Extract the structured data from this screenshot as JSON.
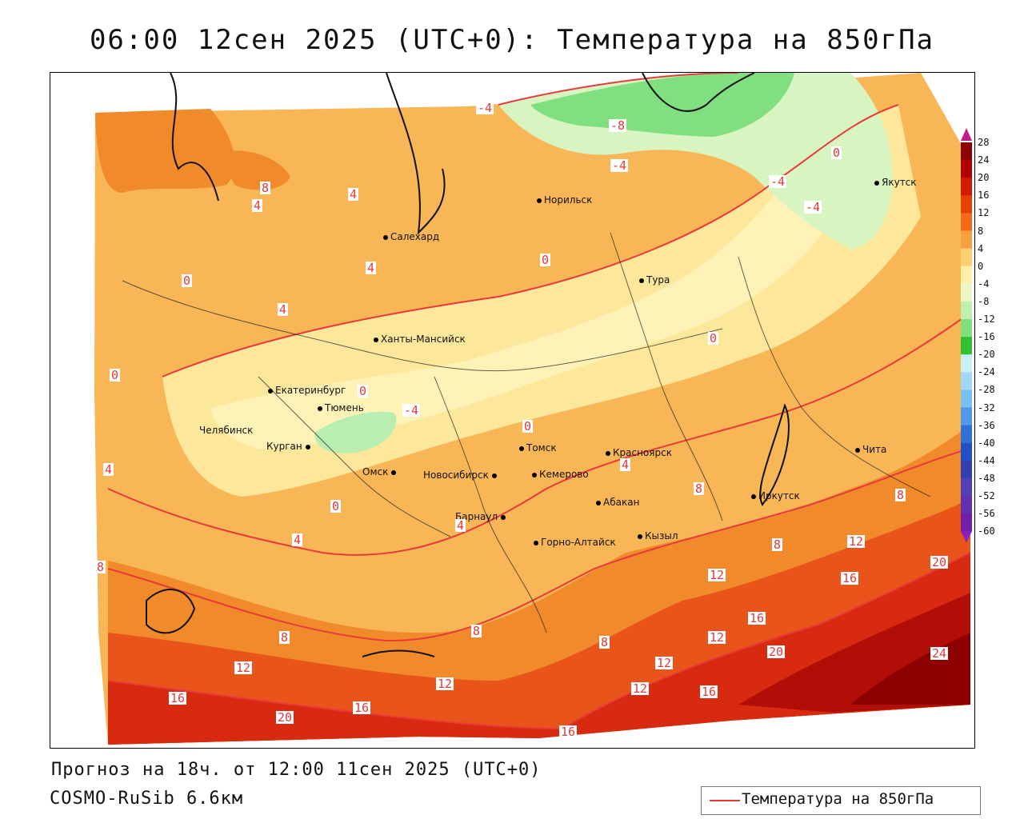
{
  "title": "06:00 12сен 2025 (UTC+0): Температура на 850гПа",
  "footer": {
    "forecast": "Прогноз на 18ч. от 12:00 11сен 2025 (UTC+0)",
    "model": "COSMO-RuSib 6.6км"
  },
  "legend": {
    "label": "Температура на 850гПа",
    "line_color": "#e83a3a"
  },
  "colorbar": {
    "levels": [
      "28",
      "24",
      "20",
      "16",
      "12",
      "8",
      "4",
      "0",
      "-4",
      "-8",
      "-12",
      "-16",
      "-20",
      "-24",
      "-28",
      "-32",
      "-36",
      "-40",
      "-44",
      "-48",
      "-52",
      "-56",
      "-60"
    ],
    "colors": [
      "#8c0000",
      "#b00000",
      "#d21a00",
      "#e84000",
      "#f46a1a",
      "#f8a040",
      "#fcd070",
      "#fff0a8",
      "#e8f8c8",
      "#c0f0b0",
      "#80e080",
      "#30c030",
      "#c8f0f8",
      "#a0d8f8",
      "#78c0f0",
      "#5098e8",
      "#3070d8",
      "#2050c8",
      "#3040b0",
      "#5040b8",
      "#6030b0",
      "#7020a8"
    ]
  },
  "cities": [
    {
      "name": "Якутск"
    },
    {
      "name": "Норильск"
    },
    {
      "name": "Салехард"
    },
    {
      "name": "Тура"
    },
    {
      "name": "Ханты-Мансийск"
    },
    {
      "name": "Екатеринбург"
    },
    {
      "name": "Тюмень"
    },
    {
      "name": "Челябинск"
    },
    {
      "name": "Курган"
    },
    {
      "name": "Омск"
    },
    {
      "name": "Новосибирск"
    },
    {
      "name": "Томск"
    },
    {
      "name": "Кемерово"
    },
    {
      "name": "Красноярск"
    },
    {
      "name": "Абакан"
    },
    {
      "name": "Барнаул"
    },
    {
      "name": "Горно-Алтайск"
    },
    {
      "name": "Кызыл"
    },
    {
      "name": "Иркутск"
    },
    {
      "name": "Чита"
    }
  ],
  "isolines": [
    "-4",
    "-8",
    "-4",
    "-4",
    "-4",
    "0",
    "4",
    "4",
    "8",
    "4",
    "0",
    "4",
    "0",
    "0",
    "0",
    "-4",
    "0",
    "0",
    "4",
    "0",
    "4",
    "4",
    "4",
    "8",
    "8",
    "8",
    "8",
    "12",
    "8",
    "12",
    "16",
    "12",
    "16",
    "20",
    "12",
    "16",
    "20",
    "24",
    "8",
    "8",
    "12",
    "16",
    "20",
    "12",
    "12",
    "16",
    "16"
  ]
}
